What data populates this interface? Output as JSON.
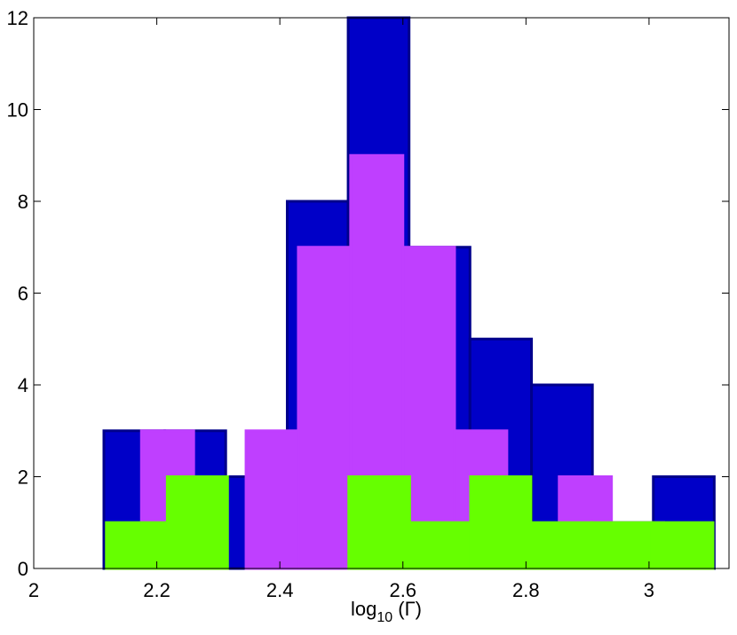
{
  "chart_data": {
    "type": "histogram",
    "xlabel": {
      "base": "log",
      "sub": "10",
      "rest": " (Γ)"
    },
    "series": [
      {
        "color": "#0000c8",
        "edge": "#00008b",
        "bins": [
          2.114,
          2.213,
          2.312,
          2.412,
          2.511,
          2.61,
          2.709,
          2.809,
          2.908,
          3.007,
          3.106
        ],
        "values": [
          3,
          3,
          2,
          8,
          12,
          7,
          5,
          4,
          1,
          2
        ]
      },
      {
        "color": "#bf3fff",
        "edge": "#bf3fff",
        "bins": [
          2.175,
          2.26,
          2.345,
          2.43,
          2.515,
          2.6,
          2.684,
          2.769,
          2.854,
          2.939,
          3.024
        ],
        "values": [
          3,
          0,
          3,
          7,
          9,
          7,
          3,
          0,
          2,
          1
        ]
      },
      {
        "color": "#66ff00",
        "edge": "#66ff00",
        "bins": [
          2.118,
          2.217,
          2.315,
          2.414,
          2.512,
          2.611,
          2.71,
          2.808,
          2.907,
          3.005,
          3.104
        ],
        "values": [
          1,
          2,
          0,
          0,
          2,
          1,
          2,
          1,
          1,
          1
        ]
      }
    ],
    "xlim": [
      2,
      3.13
    ],
    "ylim": [
      0,
      12
    ],
    "xticks": [
      2,
      2.2,
      2.4,
      2.6,
      2.8,
      3
    ],
    "yticks": [
      0,
      2,
      4,
      6,
      8,
      10,
      12
    ]
  }
}
